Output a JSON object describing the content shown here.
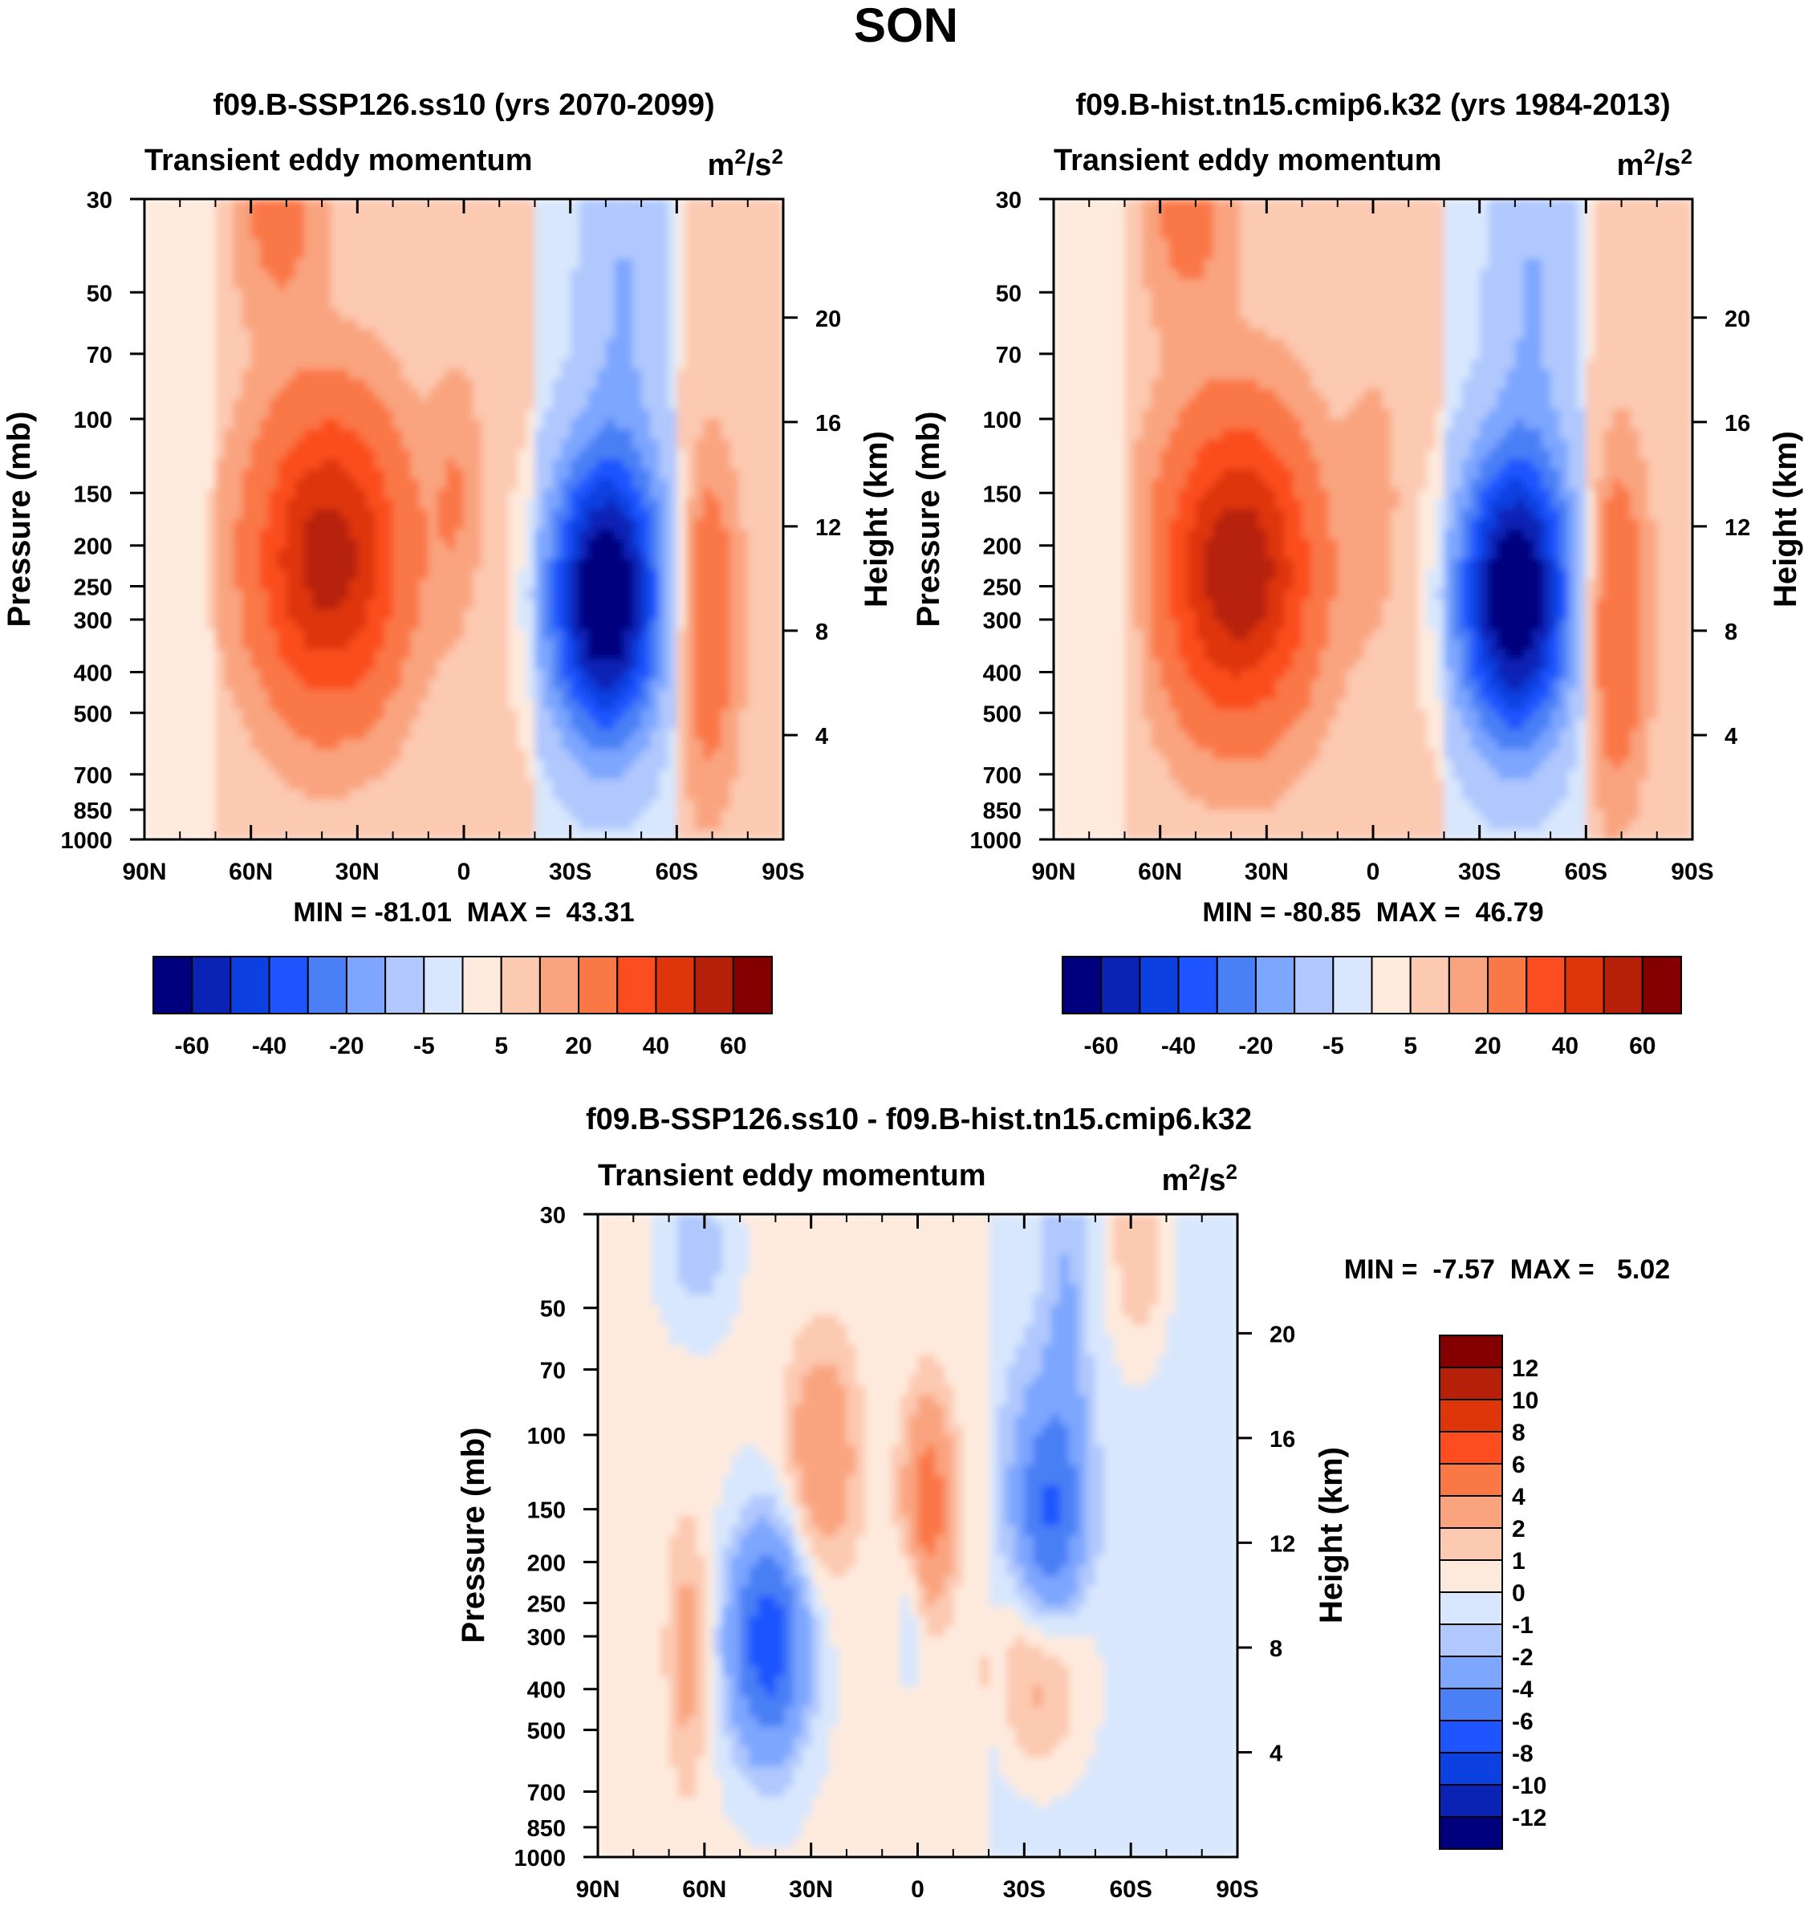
{
  "figure_title": "SON",
  "colors": {
    "main_scale": [
      "#00007f",
      "#0a23b5",
      "#0d40e0",
      "#1f55ff",
      "#4a7ff5",
      "#7da6ff",
      "#b0c8fd",
      "#d8e7fd",
      "#feeadd",
      "#fcc9b1",
      "#f9a47f",
      "#fa7746",
      "#fb4d1f",
      "#de350b",
      "#b62009",
      "#840000"
    ],
    "diff_scale": [
      "#00007f",
      "#0a23b5",
      "#0d40e0",
      "#1f55ff",
      "#4a7ff5",
      "#7da6ff",
      "#b0c8fd",
      "#d8e7fd",
      "#feeadd",
      "#fcc9b1",
      "#f9a47f",
      "#fa7746",
      "#fb4d1f",
      "#de350b",
      "#b62009",
      "#840000"
    ]
  },
  "chart_data": [
    {
      "type": "heatmap",
      "panel": "top-left",
      "title": "f09.B-SSP126.ss10 (yrs 2070-2099)",
      "subtitle_left": "Transient eddy momentum",
      "units": {
        "base": "m",
        "exp1": "2",
        "mid": "/s",
        "exp2": "2"
      },
      "ylabel": "Pressure (mb)",
      "ylabel_right": "Height (km)",
      "x_ticks": [
        "90N",
        "60N",
        "30N",
        "0",
        "30S",
        "60S",
        "90S"
      ],
      "x_range": [
        90,
        -90
      ],
      "y_ticks": [
        30,
        50,
        70,
        100,
        150,
        200,
        250,
        300,
        400,
        500,
        700,
        850,
        1000
      ],
      "y_range": [
        30,
        1000
      ],
      "height_ticks": [
        4,
        8,
        12,
        16,
        20
      ],
      "stats": {
        "min_label": "MIN =",
        "min": "-81.01",
        "max_label": "MAX =",
        "max": "43.31"
      },
      "colorbar_labels": [
        "-60",
        "-40",
        "-20",
        "-5",
        "5",
        "20",
        "40",
        "60"
      ],
      "fields": [
        {
          "name": "nh-jet-max",
          "lat": 38,
          "p": 215,
          "sx": 14,
          "sy": 0.55,
          "value": 43.31
        },
        {
          "name": "nh-strat-max",
          "lat": 52,
          "p": 30,
          "sx": 8,
          "sy": 0.45,
          "value": 12
        },
        {
          "name": "eq-max",
          "lat": 2,
          "p": 150,
          "sx": 5,
          "sy": 0.45,
          "value": 7
        },
        {
          "name": "sh-jet-min",
          "lat": -40,
          "p": 265,
          "sx": 11,
          "sy": 0.55,
          "value": -81.01
        },
        {
          "name": "sh-upper-min",
          "lat": -45,
          "p": 45,
          "sx": 9,
          "sy": 0.7,
          "value": -15
        },
        {
          "name": "sh-polar-max",
          "lat": -68,
          "p": 300,
          "sx": 6,
          "sy": 0.6,
          "value": 18
        }
      ]
    },
    {
      "type": "heatmap",
      "panel": "top-right",
      "title": "f09.B-hist.tn15.cmip6.k32 (yrs 1984-2013)",
      "subtitle_left": "Transient eddy momentum",
      "units": {
        "base": "m",
        "exp1": "2",
        "mid": "/s",
        "exp2": "2"
      },
      "ylabel": "Pressure (mb)",
      "ylabel_right": "Height (km)",
      "x_ticks": [
        "90N",
        "60N",
        "30N",
        "0",
        "30S",
        "60S",
        "90S"
      ],
      "x_range": [
        90,
        -90
      ],
      "y_ticks": [
        30,
        50,
        70,
        100,
        150,
        200,
        250,
        300,
        400,
        500,
        700,
        850,
        1000
      ],
      "y_range": [
        30,
        1000
      ],
      "height_ticks": [
        4,
        8,
        12,
        16,
        20
      ],
      "stats": {
        "min_label": "MIN =",
        "min": "-80.85",
        "max_label": "MAX =",
        "max": "46.79"
      },
      "colorbar_labels": [
        "-60",
        "-40",
        "-20",
        "-5",
        "5",
        "20",
        "40",
        "60"
      ],
      "fields": [
        {
          "name": "nh-jet-max",
          "lat": 38,
          "p": 230,
          "sx": 14,
          "sy": 0.55,
          "value": 46.79
        },
        {
          "name": "nh-strat-max",
          "lat": 52,
          "p": 30,
          "sx": 8,
          "sy": 0.45,
          "value": 12
        },
        {
          "name": "eq-max",
          "lat": 0,
          "p": 160,
          "sx": 5,
          "sy": 0.45,
          "value": 6
        },
        {
          "name": "nh-midlat-min",
          "lat": 68,
          "p": 280,
          "sx": 4,
          "sy": 0.4,
          "value": -3
        },
        {
          "name": "sh-jet-min",
          "lat": -40,
          "p": 265,
          "sx": 11,
          "sy": 0.55,
          "value": -80.85
        },
        {
          "name": "sh-upper-min",
          "lat": -45,
          "p": 45,
          "sx": 9,
          "sy": 0.7,
          "value": -15
        },
        {
          "name": "sh-polar-max",
          "lat": -68,
          "p": 300,
          "sx": 6,
          "sy": 0.6,
          "value": 20
        }
      ]
    },
    {
      "type": "heatmap",
      "panel": "bottom",
      "title": "f09.B-SSP126.ss10 - f09.B-hist.tn15.cmip6.k32",
      "subtitle_left": "Transient eddy momentum",
      "units": {
        "base": "m",
        "exp1": "2",
        "mid": "/s",
        "exp2": "2"
      },
      "ylabel": "Pressure (mb)",
      "ylabel_right": "Height (km)",
      "x_ticks": [
        "90N",
        "60N",
        "30N",
        "0",
        "30S",
        "60S",
        "90S"
      ],
      "x_range": [
        90,
        -90
      ],
      "y_ticks": [
        30,
        50,
        70,
        100,
        150,
        200,
        250,
        300,
        400,
        500,
        700,
        850,
        1000
      ],
      "y_range": [
        30,
        1000
      ],
      "height_ticks": [
        4,
        8,
        12,
        16,
        20
      ],
      "stats": {
        "min_label": "MIN =",
        "min": "-7.57",
        "max_label": "MAX =",
        "max": "5.02"
      },
      "colorbar_labels": [
        "12",
        "10",
        "8",
        "6",
        "4",
        "2",
        "1",
        "0",
        "-1",
        "-2",
        "-4",
        "-6",
        "-8",
        "-10",
        "-12"
      ],
      "fields": [
        {
          "name": "nh-midlat-min",
          "lat": 42,
          "p": 310,
          "sx": 8,
          "sy": 0.45,
          "value": -7.57
        },
        {
          "name": "nh-upper-max",
          "lat": 27,
          "p": 115,
          "sx": 7,
          "sy": 0.45,
          "value": 3.5
        },
        {
          "name": "nh-lower-max",
          "lat": 65,
          "p": 330,
          "sx": 4,
          "sy": 0.5,
          "value": 2.5
        },
        {
          "name": "nh-strat-min",
          "lat": 62,
          "p": 36,
          "sx": 7,
          "sy": 0.3,
          "value": -2
        },
        {
          "name": "eq-upper-max",
          "lat": -3,
          "p": 145,
          "sx": 5,
          "sy": 0.4,
          "value": 5.02
        },
        {
          "name": "eq-min",
          "lat": 2,
          "p": 250,
          "sx": 3,
          "sy": 0.3,
          "value": -1.5
        },
        {
          "name": "sh-upper-min",
          "lat": -37,
          "p": 165,
          "sx": 7,
          "sy": 0.5,
          "value": -6
        },
        {
          "name": "sh-lower-max",
          "lat": -35,
          "p": 350,
          "sx": 9,
          "sy": 0.4,
          "value": 4
        },
        {
          "name": "sh-strat-max",
          "lat": -62,
          "p": 35,
          "sx": 6,
          "sy": 0.45,
          "value": 2.5
        },
        {
          "name": "sh-midlat-min",
          "lat": -42,
          "p": 50,
          "sx": 4,
          "sy": 0.6,
          "value": -1.5
        }
      ]
    }
  ]
}
